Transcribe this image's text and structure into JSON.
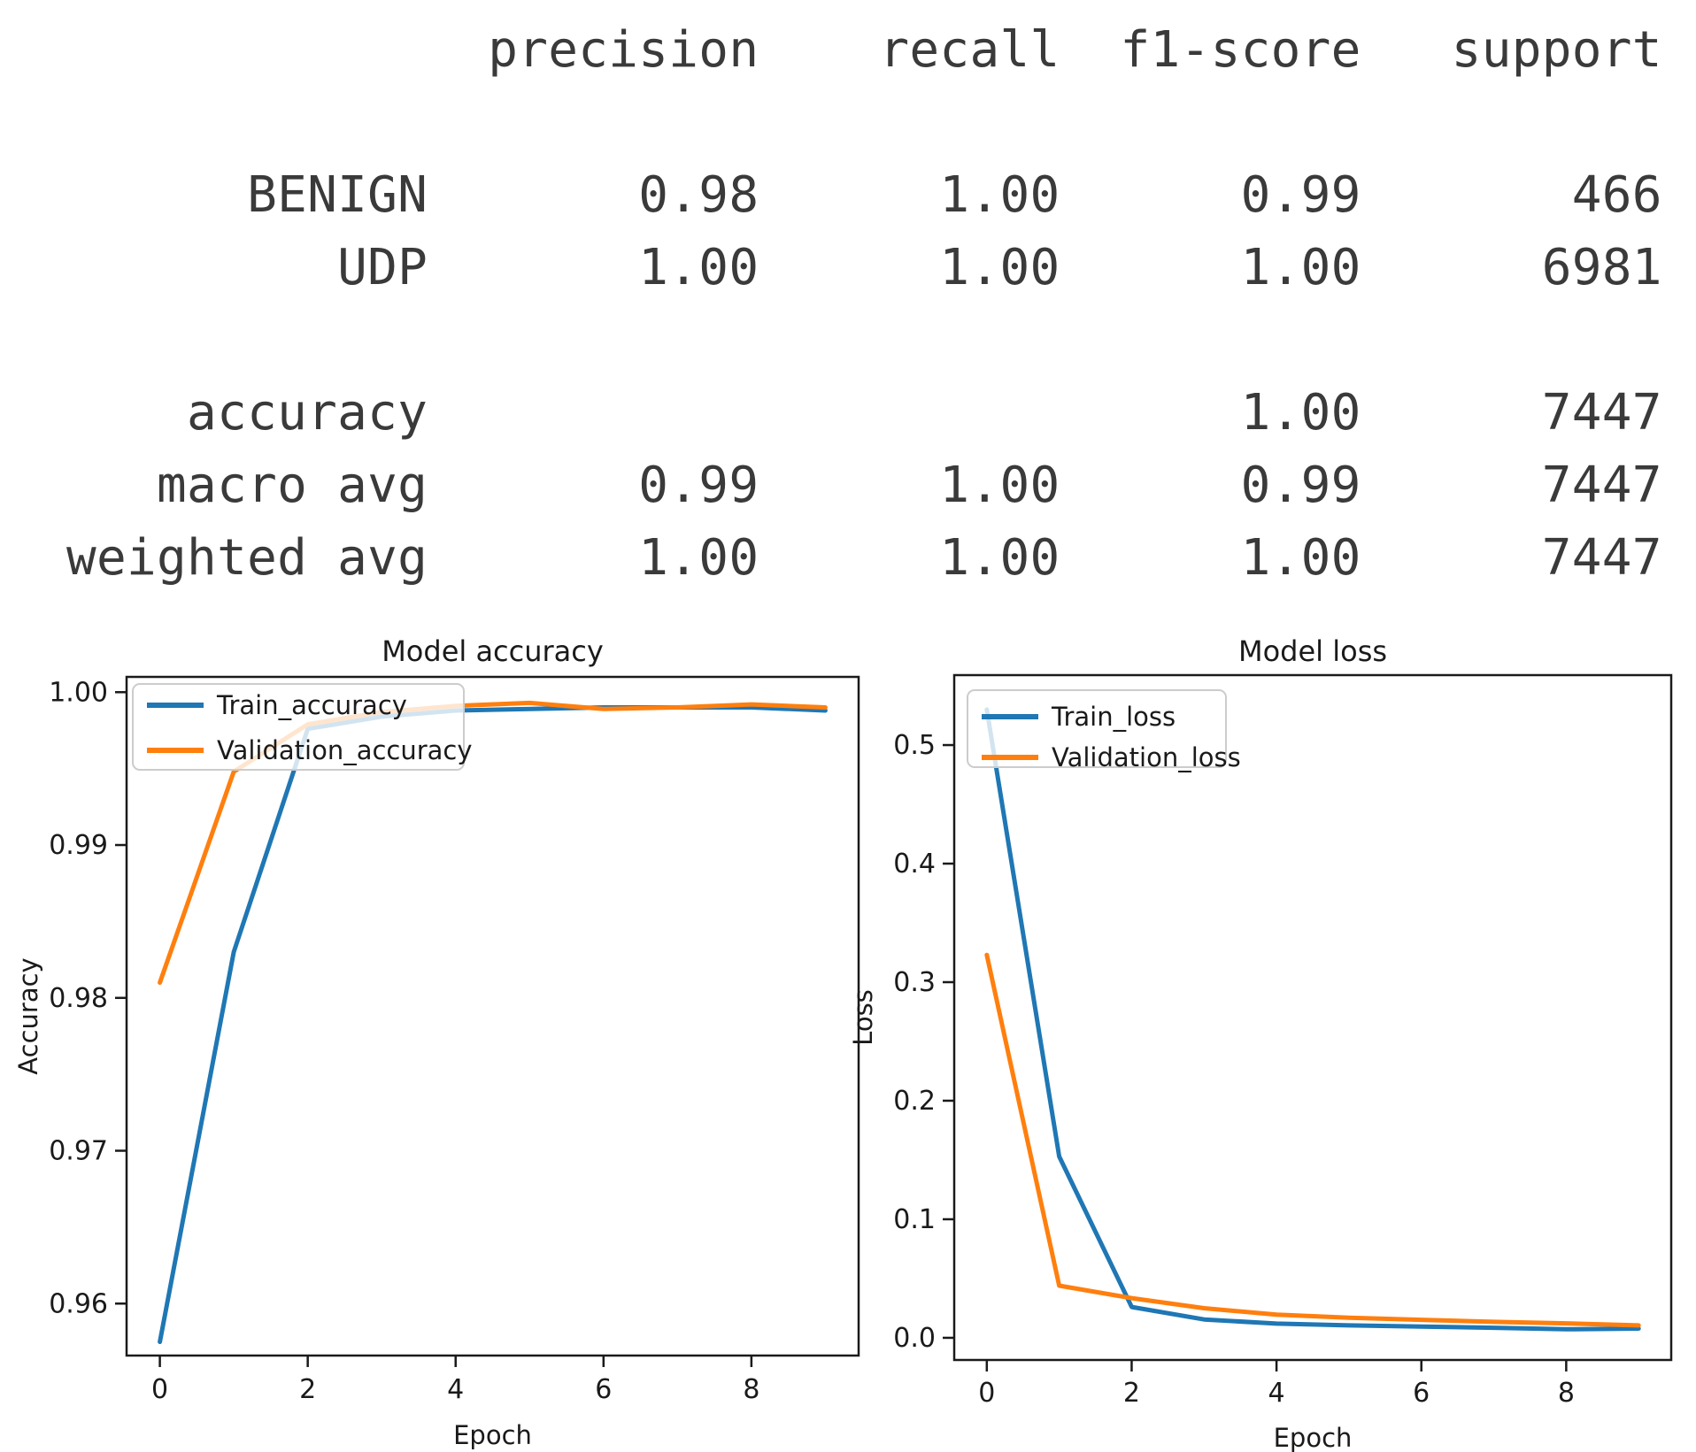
{
  "classification_report": {
    "columns": [
      "precision",
      "recall",
      "f1-score",
      "support"
    ],
    "class_rows": [
      {
        "label": "BENIGN",
        "precision": "0.98",
        "recall": "1.00",
        "f1_score": "0.99",
        "support": "466"
      },
      {
        "label": "UDP",
        "precision": "1.00",
        "recall": "1.00",
        "f1_score": "1.00",
        "support": "6981"
      }
    ],
    "summary_rows": [
      {
        "label": "accuracy",
        "precision": "",
        "recall": "",
        "f1_score": "1.00",
        "support": "7447"
      },
      {
        "label": "macro avg",
        "precision": "0.99",
        "recall": "1.00",
        "f1_score": "0.99",
        "support": "7447"
      },
      {
        "label": "weighted avg",
        "precision": "1.00",
        "recall": "1.00",
        "f1_score": "1.00",
        "support": "7447"
      }
    ]
  },
  "chart_data": [
    {
      "type": "line",
      "title": "Model accuracy",
      "xlabel": "Epoch",
      "ylabel": "Accuracy",
      "x": [
        0,
        1,
        2,
        3,
        4,
        5,
        6,
        7,
        8,
        9
      ],
      "xtick_values": [
        0,
        2,
        4,
        6,
        8
      ],
      "xtick_labels": [
        "0",
        "2",
        "4",
        "6",
        "8"
      ],
      "ytick_values": [
        1.0,
        0.99,
        0.98,
        0.97,
        0.96
      ],
      "ytick_labels": [
        "1.00",
        "0.99",
        "0.98",
        "0.97",
        "0.96"
      ],
      "xlim": [
        -0.45,
        9.45
      ],
      "ylim": [
        0.9566,
        1.001
      ],
      "grid": false,
      "legend_position": "upper left",
      "series": [
        {
          "name": "Train_accuracy",
          "color": "#1f77b4",
          "values": [
            0.9575,
            0.983,
            0.9976,
            0.9984,
            0.9988,
            0.9989,
            0.999,
            0.999,
            0.999,
            0.9988
          ]
        },
        {
          "name": "Validation_accuracy",
          "color": "#ff7f0e",
          "values": [
            0.981,
            0.9948,
            0.9979,
            0.9987,
            0.9991,
            0.9993,
            0.9989,
            0.999,
            0.9992,
            0.999
          ]
        }
      ]
    },
    {
      "type": "line",
      "title": "Model loss",
      "xlabel": "Epoch",
      "ylabel": "Loss",
      "x": [
        0,
        1,
        2,
        3,
        4,
        5,
        6,
        7,
        8,
        9
      ],
      "xtick_values": [
        0,
        2,
        4,
        6,
        8
      ],
      "xtick_labels": [
        "0",
        "2",
        "4",
        "6",
        "8"
      ],
      "ytick_values": [
        0.5,
        0.4,
        0.3,
        0.2,
        0.1,
        0.0
      ],
      "ytick_labels": [
        "0.5",
        "0.4",
        "0.3",
        "0.2",
        "0.1",
        "0.0"
      ],
      "xlim": [
        -0.45,
        9.45
      ],
      "ylim": [
        -0.0187,
        0.559
      ],
      "grid": false,
      "legend_position": "upper left",
      "series": [
        {
          "name": "Train_loss",
          "color": "#1f77b4",
          "values": [
            0.53,
            0.153,
            0.026,
            0.0155,
            0.012,
            0.0105,
            0.0095,
            0.0085,
            0.0072,
            0.0078
          ]
        },
        {
          "name": "Validation_loss",
          "color": "#ff7f0e",
          "values": [
            0.323,
            0.044,
            0.0335,
            0.025,
            0.0195,
            0.017,
            0.0152,
            0.0135,
            0.0122,
            0.0105
          ]
        }
      ]
    }
  ],
  "colors": {
    "train": "#1f77b4",
    "validation": "#ff7f0e",
    "axis_text": "#1a1a1a",
    "report_text": "#3a3a3a",
    "legend_border": "#cccccc",
    "background": "#ffffff"
  }
}
